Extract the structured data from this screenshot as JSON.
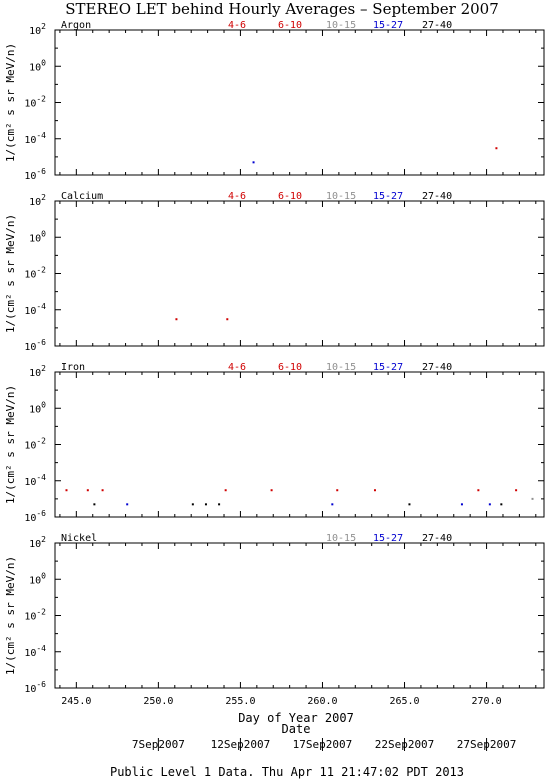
{
  "chart_data": {
    "type": "scatter",
    "title": "STEREO LET behind Hourly Averages – September 2007",
    "ylabel": "1/(cm² s sr MeV/n)",
    "x_axis_labels": [
      "Date",
      "Day of Year 2007"
    ],
    "xlim": [
      243.7,
      273.5
    ],
    "x_ticks": [
      "245.0",
      "250.0",
      "255.0",
      "260.0",
      "265.0",
      "270.0"
    ],
    "date_ticks": [
      {
        "x": 250,
        "label": "7Sep2007"
      },
      {
        "x": 255,
        "label": "12Sep2007"
      },
      {
        "x": 260,
        "label": "17Sep2007"
      },
      {
        "x": 265,
        "label": "22Sep2007"
      },
      {
        "x": 270,
        "label": "27Sep2007"
      }
    ],
    "yscale": "log",
    "ylim": [
      1e-06,
      100
    ],
    "y_tick_exponents": [
      2,
      0,
      -2,
      -4,
      -6
    ],
    "colors": {
      "4-6": "#d00000",
      "6-10": "#d00000",
      "10-15": "#909090",
      "15-27": "#0000d0",
      "27-40": "#000000"
    },
    "panels": [
      {
        "name": "Argon",
        "legend": [
          "4-6",
          "6-10",
          "10-15",
          "15-27",
          "27-40"
        ],
        "points": [
          {
            "series": "15-27",
            "x": 255.8,
            "y": 5e-06
          },
          {
            "series": "4-6",
            "x": 270.6,
            "y": 3e-05
          }
        ]
      },
      {
        "name": "Calcium",
        "legend": [
          "4-6",
          "6-10",
          "10-15",
          "15-27",
          "27-40"
        ],
        "points": [
          {
            "series": "4-6",
            "x": 251.1,
            "y": 3e-05
          },
          {
            "series": "4-6",
            "x": 254.2,
            "y": 3e-05
          }
        ]
      },
      {
        "name": "Iron",
        "legend": [
          "4-6",
          "6-10",
          "10-15",
          "15-27",
          "27-40"
        ],
        "points": [
          {
            "series": "4-6",
            "x": 244.4,
            "y": 3e-05
          },
          {
            "series": "4-6",
            "x": 245.7,
            "y": 3e-05
          },
          {
            "series": "4-6",
            "x": 246.6,
            "y": 3e-05
          },
          {
            "series": "27-40",
            "x": 246.1,
            "y": 5e-06
          },
          {
            "series": "15-27",
            "x": 248.1,
            "y": 5e-06
          },
          {
            "series": "27-40",
            "x": 252.1,
            "y": 5e-06
          },
          {
            "series": "27-40",
            "x": 252.9,
            "y": 5e-06
          },
          {
            "series": "27-40",
            "x": 253.7,
            "y": 5e-06
          },
          {
            "series": "4-6",
            "x": 254.1,
            "y": 3e-05
          },
          {
            "series": "4-6",
            "x": 256.9,
            "y": 3e-05
          },
          {
            "series": "15-27",
            "x": 260.6,
            "y": 5e-06
          },
          {
            "series": "4-6",
            "x": 260.9,
            "y": 3e-05
          },
          {
            "series": "4-6",
            "x": 263.2,
            "y": 3e-05
          },
          {
            "series": "27-40",
            "x": 265.3,
            "y": 5e-06
          },
          {
            "series": "15-27",
            "x": 268.5,
            "y": 5e-06
          },
          {
            "series": "4-6",
            "x": 269.5,
            "y": 3e-05
          },
          {
            "series": "15-27",
            "x": 270.2,
            "y": 5e-06
          },
          {
            "series": "27-40",
            "x": 270.9,
            "y": 5e-06
          },
          {
            "series": "4-6",
            "x": 271.8,
            "y": 3e-05
          },
          {
            "series": "10-15",
            "x": 272.8,
            "y": 1e-05
          }
        ]
      },
      {
        "name": "Nickel",
        "legend": [
          "10-15",
          "15-27",
          "27-40"
        ],
        "points": []
      }
    ]
  },
  "footer": "Public Level 1 Data. Thu Apr 11 21:47:02 PDT 2013"
}
